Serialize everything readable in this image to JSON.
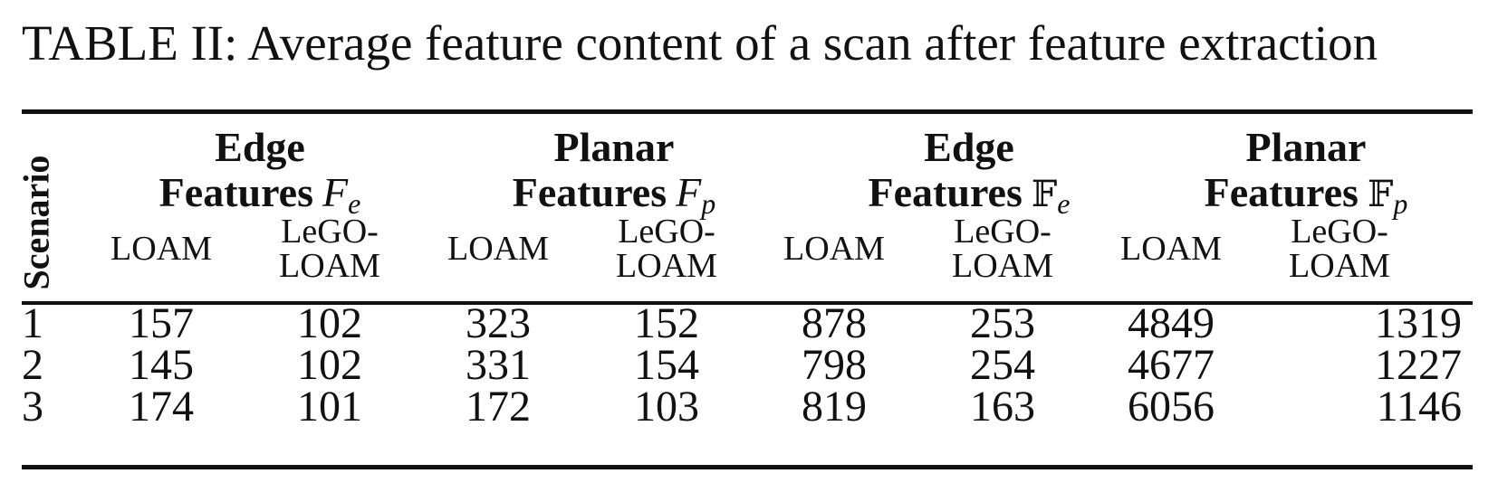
{
  "caption": "TABLE II: Average feature content of a scan after feature extraction",
  "table": {
    "scenario_header": "Scenario",
    "groups": [
      {
        "line1": "Edge",
        "line2": "Features",
        "symbol": "F",
        "subscript": "e"
      },
      {
        "line1": "Planar",
        "line2": "Features",
        "symbol": "F",
        "subscript": "p"
      },
      {
        "line1": "Edge",
        "line2": "Features",
        "symbol": "𝔽",
        "subscript": "e"
      },
      {
        "line1": "Planar",
        "line2": "Features",
        "symbol": "𝔽",
        "subscript": "p"
      }
    ],
    "sub_headers": {
      "loam": "LOAM",
      "lego_line1": "LeGO-",
      "lego_line2": "LOAM"
    },
    "rows": [
      {
        "scenario": "1",
        "values": [
          "157",
          "102",
          "323",
          "152",
          "878",
          "253",
          "4849",
          "1319"
        ]
      },
      {
        "scenario": "2",
        "values": [
          "145",
          "102",
          "331",
          "154",
          "798",
          "254",
          "4677",
          "1227"
        ]
      },
      {
        "scenario": "3",
        "values": [
          "174",
          "101",
          "172",
          "103",
          "819",
          "163",
          "6056",
          "1146"
        ]
      }
    ]
  }
}
